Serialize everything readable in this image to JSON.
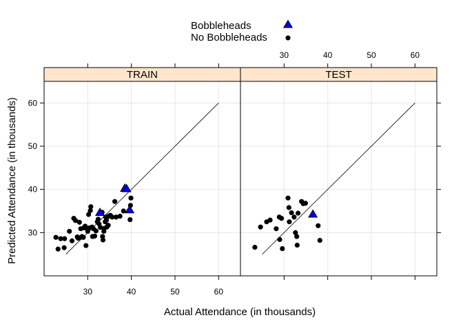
{
  "chart_data": {
    "type": "scatter",
    "xlabel": "Actual Attendance (in thousands)",
    "ylabel": "Predicted Attendance (in thousands)",
    "xlim": [
      20,
      65
    ],
    "ylim": [
      20,
      65
    ],
    "x_ticks": [
      30,
      40,
      50,
      60
    ],
    "y_ticks": [
      30,
      40,
      50,
      60
    ],
    "grid": true,
    "legend_position": "top",
    "legend": [
      {
        "label": "Bobbleheads",
        "marker": "triangle",
        "color": "#0000ff"
      },
      {
        "label": "No Bobbleheads",
        "marker": "dot",
        "color": "#000000"
      }
    ],
    "reference_line": {
      "from": [
        25,
        25
      ],
      "to": [
        60,
        60
      ]
    },
    "panels": [
      {
        "name": "TRAIN",
        "series": [
          {
            "name": "Bobbleheads",
            "points": [
              [
                32.8,
                34.6
              ],
              [
                38.5,
                40.2
              ],
              [
                38.9,
                40.1
              ],
              [
                39.6,
                35.2
              ]
            ]
          },
          {
            "name": "No Bobbleheads",
            "points": [
              [
                22.7,
                28.9
              ],
              [
                23.2,
                26.2
              ],
              [
                23.8,
                28.6
              ],
              [
                24.7,
                28.6
              ],
              [
                24.6,
                26.5
              ],
              [
                25.8,
                30.3
              ],
              [
                26.4,
                28.1
              ],
              [
                26.8,
                33.3
              ],
              [
                27.2,
                32.8
              ],
              [
                27.6,
                29.0
              ],
              [
                27.8,
                28.7
              ],
              [
                28.1,
                32.4
              ],
              [
                28.2,
                28.8
              ],
              [
                28.4,
                30.9
              ],
              [
                28.7,
                29.1
              ],
              [
                29.0,
                28.9
              ],
              [
                29.1,
                31.1
              ],
              [
                29.4,
                31.5
              ],
              [
                29.6,
                27.0
              ],
              [
                29.9,
                30.9
              ],
              [
                30.0,
                30.3
              ],
              [
                30.2,
                34.2
              ],
              [
                30.4,
                31.1
              ],
              [
                30.6,
                35.1
              ],
              [
                30.7,
                36.0
              ],
              [
                31.0,
                31.3
              ],
              [
                31.1,
                29.1
              ],
              [
                31.3,
                30.9
              ],
              [
                31.6,
                29.2
              ],
              [
                31.9,
                30.4
              ],
              [
                32.2,
                32.5
              ],
              [
                32.4,
                33.1
              ],
              [
                32.6,
                32.0
              ],
              [
                32.9,
                31.2
              ],
              [
                33.3,
                34.7
              ],
              [
                33.4,
                29.1
              ],
              [
                33.5,
                28.3
              ],
              [
                33.7,
                30.3
              ],
              [
                33.8,
                31.0
              ],
              [
                34.0,
                32.5
              ],
              [
                34.1,
                33.6
              ],
              [
                34.3,
                32.9
              ],
              [
                34.4,
                31.3
              ],
              [
                34.7,
                31.7
              ],
              [
                34.8,
                33.8
              ],
              [
                35.2,
                34.0
              ],
              [
                35.6,
                33.6
              ],
              [
                36.2,
                37.2
              ],
              [
                36.5,
                33.6
              ],
              [
                37.4,
                33.8
              ],
              [
                38.2,
                35.0
              ],
              [
                39.7,
                33.0
              ],
              [
                39.8,
                36.3
              ],
              [
                39.9,
                38.0
              ]
            ]
          }
        ]
      },
      {
        "name": "TEST",
        "series": [
          {
            "name": "Bobbleheads",
            "points": [
              [
                36.6,
                34.2
              ]
            ]
          },
          {
            "name": "No Bobbleheads",
            "points": [
              [
                23.3,
                26.6
              ],
              [
                24.6,
                31.3
              ],
              [
                26.0,
                32.5
              ],
              [
                26.8,
                32.9
              ],
              [
                28.2,
                30.9
              ],
              [
                28.9,
                33.6
              ],
              [
                29.0,
                28.4
              ],
              [
                29.4,
                33.3
              ],
              [
                29.6,
                26.3
              ],
              [
                30.9,
                38.0
              ],
              [
                31.1,
                35.8
              ],
              [
                31.2,
                32.5
              ],
              [
                31.7,
                34.6
              ],
              [
                32.3,
                33.6
              ],
              [
                32.6,
                30.0
              ],
              [
                32.9,
                29.1
              ],
              [
                33.0,
                27.1
              ],
              [
                33.2,
                34.5
              ],
              [
                34.0,
                37.2
              ],
              [
                34.4,
                36.7
              ],
              [
                34.9,
                36.8
              ],
              [
                37.8,
                31.6
              ],
              [
                38.2,
                28.2
              ]
            ]
          }
        ]
      }
    ]
  }
}
